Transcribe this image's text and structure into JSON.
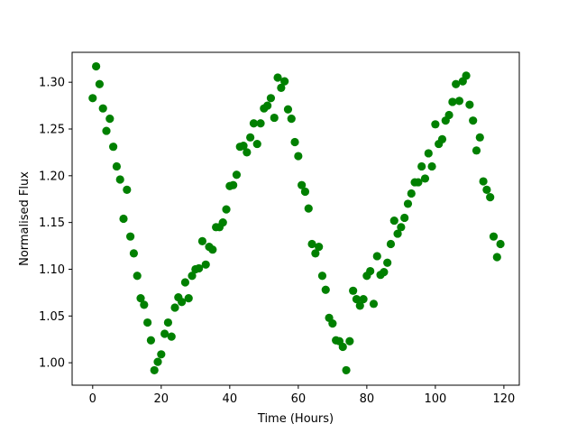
{
  "chart_data": {
    "type": "scatter",
    "xlabel": "Time (Hours)",
    "ylabel": "Normalised Flux",
    "xlim": [
      -6,
      124.5
    ],
    "ylim": [
      0.976,
      1.332
    ],
    "xticks": [
      0,
      20,
      40,
      60,
      80,
      100,
      120
    ],
    "xtick_labels": [
      "0",
      "20",
      "40",
      "60",
      "80",
      "100",
      "120"
    ],
    "yticks": [
      1.0,
      1.05,
      1.1,
      1.15,
      1.2,
      1.25,
      1.3
    ],
    "ytick_labels": [
      "1.00",
      "1.05",
      "1.10",
      "1.15",
      "1.20",
      "1.25",
      "1.30"
    ],
    "grid": false,
    "series": [
      {
        "color": "#008000",
        "marker": "circle",
        "points": [
          [
            0,
            1.283
          ],
          [
            1,
            1.317
          ],
          [
            2,
            1.298
          ],
          [
            3,
            1.272
          ],
          [
            4,
            1.248
          ],
          [
            5,
            1.261
          ],
          [
            6,
            1.231
          ],
          [
            7,
            1.21
          ],
          [
            8,
            1.196
          ],
          [
            9,
            1.154
          ],
          [
            10,
            1.185
          ],
          [
            11,
            1.135
          ],
          [
            12,
            1.117
          ],
          [
            13,
            1.093
          ],
          [
            14,
            1.069
          ],
          [
            15,
            1.062
          ],
          [
            16,
            1.043
          ],
          [
            17,
            1.024
          ],
          [
            18,
            0.992
          ],
          [
            19,
            1.001
          ],
          [
            20,
            1.009
          ],
          [
            21,
            1.031
          ],
          [
            22,
            1.043
          ],
          [
            23,
            1.028
          ],
          [
            24,
            1.059
          ],
          [
            25,
            1.07
          ],
          [
            26,
            1.065
          ],
          [
            27,
            1.086
          ],
          [
            28,
            1.069
          ],
          [
            29,
            1.093
          ],
          [
            30,
            1.1
          ],
          [
            31,
            1.101
          ],
          [
            32,
            1.13
          ],
          [
            33,
            1.105
          ],
          [
            34,
            1.124
          ],
          [
            35,
            1.121
          ],
          [
            36,
            1.145
          ],
          [
            37,
            1.145
          ],
          [
            38,
            1.15
          ],
          [
            39,
            1.164
          ],
          [
            40,
            1.189
          ],
          [
            41,
            1.19
          ],
          [
            42,
            1.201
          ],
          [
            43,
            1.231
          ],
          [
            44,
            1.232
          ],
          [
            45,
            1.225
          ],
          [
            46,
            1.241
          ],
          [
            47,
            1.256
          ],
          [
            48,
            1.234
          ],
          [
            49,
            1.256
          ],
          [
            50,
            1.272
          ],
          [
            51,
            1.275
          ],
          [
            52,
            1.283
          ],
          [
            53,
            1.262
          ],
          [
            54,
            1.305
          ],
          [
            55,
            1.294
          ],
          [
            56,
            1.301
          ],
          [
            57,
            1.271
          ],
          [
            58,
            1.261
          ],
          [
            59,
            1.236
          ],
          [
            60,
            1.221
          ],
          [
            61,
            1.19
          ],
          [
            62,
            1.183
          ],
          [
            63,
            1.165
          ],
          [
            64,
            1.127
          ],
          [
            65,
            1.117
          ],
          [
            66,
            1.124
          ],
          [
            67,
            1.093
          ],
          [
            68,
            1.078
          ],
          [
            69,
            1.048
          ],
          [
            70,
            1.042
          ],
          [
            71,
            1.024
          ],
          [
            72,
            1.023
          ],
          [
            73,
            1.017
          ],
          [
            74,
            0.992
          ],
          [
            75,
            1.023
          ],
          [
            76,
            1.077
          ],
          [
            77,
            1.068
          ],
          [
            78,
            1.061
          ],
          [
            79,
            1.068
          ],
          [
            80,
            1.093
          ],
          [
            81,
            1.098
          ],
          [
            82,
            1.063
          ],
          [
            83,
            1.114
          ],
          [
            84,
            1.094
          ],
          [
            85,
            1.097
          ],
          [
            86,
            1.107
          ],
          [
            87,
            1.127
          ],
          [
            88,
            1.152
          ],
          [
            89,
            1.138
          ],
          [
            90,
            1.145
          ],
          [
            91,
            1.155
          ],
          [
            92,
            1.17
          ],
          [
            93,
            1.181
          ],
          [
            94,
            1.193
          ],
          [
            95,
            1.193
          ],
          [
            96,
            1.21
          ],
          [
            97,
            1.197
          ],
          [
            98,
            1.224
          ],
          [
            99,
            1.21
          ],
          [
            100,
            1.255
          ],
          [
            101,
            1.234
          ],
          [
            102,
            1.239
          ],
          [
            103,
            1.259
          ],
          [
            104,
            1.265
          ],
          [
            105,
            1.279
          ],
          [
            106,
            1.298
          ],
          [
            107,
            1.28
          ],
          [
            108,
            1.301
          ],
          [
            109,
            1.307
          ],
          [
            110,
            1.276
          ],
          [
            111,
            1.259
          ],
          [
            112,
            1.227
          ],
          [
            113,
            1.241
          ],
          [
            114,
            1.194
          ],
          [
            115,
            1.185
          ],
          [
            116,
            1.177
          ],
          [
            117,
            1.135
          ],
          [
            118,
            1.113
          ],
          [
            119,
            1.127
          ]
        ]
      }
    ]
  }
}
